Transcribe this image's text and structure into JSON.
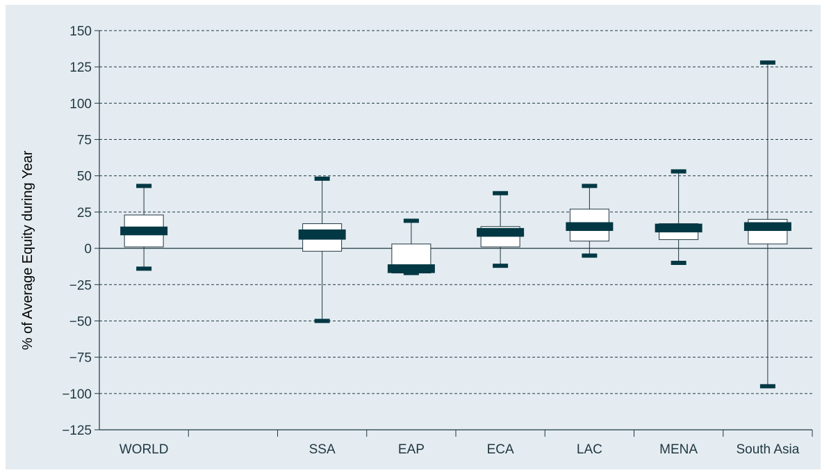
{
  "colors": {
    "background": "#e4ecf1",
    "axis": "#1f3640",
    "grid": "#1f3640",
    "median_bar": "#023843",
    "box_fill": "#ffffff",
    "text": "#1f3640"
  },
  "chart_data": {
    "type": "boxplot",
    "title": "",
    "xlabel": "",
    "ylabel": "% of Average Equity during Year",
    "ylim": [
      -125,
      150
    ],
    "yticks": [
      150,
      125,
      100,
      75,
      50,
      25,
      0,
      -25,
      -50,
      -75,
      -100,
      -125
    ],
    "ytick_labels": [
      "150",
      "125",
      "100",
      "75",
      "50",
      "25",
      "0",
      "−25",
      "−50",
      "−75",
      "−100",
      "−125"
    ],
    "grid": "horizontal dashed",
    "categories": [
      "WORLD",
      "",
      "SSA",
      "EAP",
      "ECA",
      "LAC",
      "MENA",
      "South Asia"
    ],
    "series": [
      {
        "category": "WORLD",
        "min": -14,
        "q1": 1,
        "median_low": 9,
        "median_high": 15,
        "q3": 23,
        "max": 43
      },
      {
        "category": "SSA",
        "min": -50,
        "q1": -2,
        "median_low": 6,
        "median_high": 13,
        "q3": 17,
        "max": 48
      },
      {
        "category": "EAP",
        "min": -17,
        "q1": -17,
        "median_low": -17,
        "median_high": -11,
        "q3": 3,
        "max": 19
      },
      {
        "category": "ECA",
        "min": -12,
        "q1": 1,
        "median_low": 8,
        "median_high": 14,
        "q3": 15,
        "max": 38
      },
      {
        "category": "LAC",
        "min": -5,
        "q1": 5,
        "median_low": 12,
        "median_high": 18,
        "q3": 27,
        "max": 43
      },
      {
        "category": "MENA",
        "min": -10,
        "q1": 6,
        "median_low": 11,
        "median_high": 17,
        "q3": 17,
        "max": 53
      },
      {
        "category": "South Asia",
        "min": -95,
        "q1": 3,
        "median_low": 12,
        "median_high": 18,
        "q3": 20,
        "max": 128
      }
    ]
  }
}
